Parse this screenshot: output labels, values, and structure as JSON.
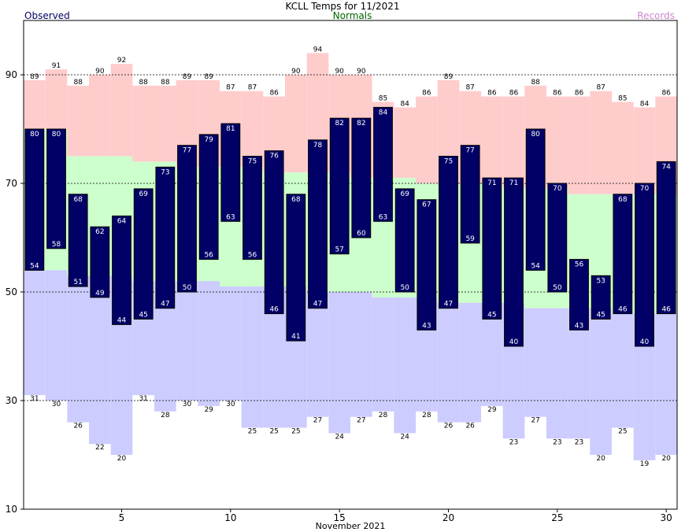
{
  "chart_data": {
    "type": "bar",
    "title": "KCLL Temps for 11/2021",
    "xlabel": "November 2021",
    "ylabel": "",
    "ylim": [
      10,
      100
    ],
    "xlim": [
      0.5,
      30.5
    ],
    "yticks": [
      10,
      30,
      50,
      70,
      90
    ],
    "xticks": [
      5,
      10,
      15,
      20,
      25,
      30
    ],
    "gridlines_y": [
      30,
      50,
      70,
      90
    ],
    "legend": {
      "observed": "Observed",
      "normals": "Normals",
      "records": "Records"
    },
    "colors": {
      "observed": "#000066",
      "normals": "#ccffcc",
      "record_high": "#ffcccc",
      "record_low": "#ccccff",
      "observed_label": "#000066",
      "normals_label": "#006600",
      "records_label": "#cc88cc"
    },
    "days": [
      1,
      2,
      3,
      4,
      5,
      6,
      7,
      8,
      9,
      10,
      11,
      12,
      13,
      14,
      15,
      16,
      17,
      18,
      19,
      20,
      21,
      22,
      23,
      24,
      25,
      26,
      27,
      28,
      29,
      30
    ],
    "observed_high": [
      80,
      80,
      68,
      62,
      64,
      69,
      73,
      77,
      79,
      81,
      75,
      76,
      68,
      78,
      82,
      82,
      84,
      69,
      67,
      75,
      77,
      71,
      71,
      80,
      70,
      56,
      53,
      68,
      70,
      74
    ],
    "observed_low": [
      54,
      58,
      51,
      49,
      44,
      45,
      47,
      50,
      56,
      63,
      56,
      46,
      41,
      47,
      57,
      60,
      63,
      50,
      43,
      47,
      59,
      45,
      40,
      54,
      50,
      43,
      45,
      46,
      40,
      46
    ],
    "normal_high": [
      80,
      80,
      75,
      75,
      75,
      74,
      74,
      73,
      73,
      73,
      73,
      72,
      72,
      72,
      72,
      71,
      71,
      71,
      70,
      70,
      70,
      70,
      69,
      69,
      69,
      68,
      68,
      68,
      68,
      68
    ],
    "normal_low": [
      54,
      54,
      53,
      53,
      53,
      52,
      52,
      52,
      52,
      51,
      51,
      51,
      51,
      50,
      50,
      50,
      49,
      49,
      49,
      48,
      48,
      48,
      48,
      47,
      47,
      47,
      47,
      46,
      46,
      46
    ],
    "record_high": [
      89,
      91,
      88,
      90,
      92,
      88,
      88,
      89,
      89,
      87,
      87,
      86,
      90,
      94,
      90,
      90,
      85,
      84,
      86,
      89,
      87,
      86,
      86,
      88,
      86,
      86,
      87,
      85,
      84,
      86
    ],
    "record_low": [
      31,
      30,
      26,
      22,
      20,
      31,
      28,
      30,
      29,
      30,
      25,
      25,
      25,
      27,
      24,
      27,
      28,
      24,
      28,
      26,
      26,
      29,
      23,
      27,
      23,
      23,
      20,
      25,
      19,
      20
    ]
  }
}
